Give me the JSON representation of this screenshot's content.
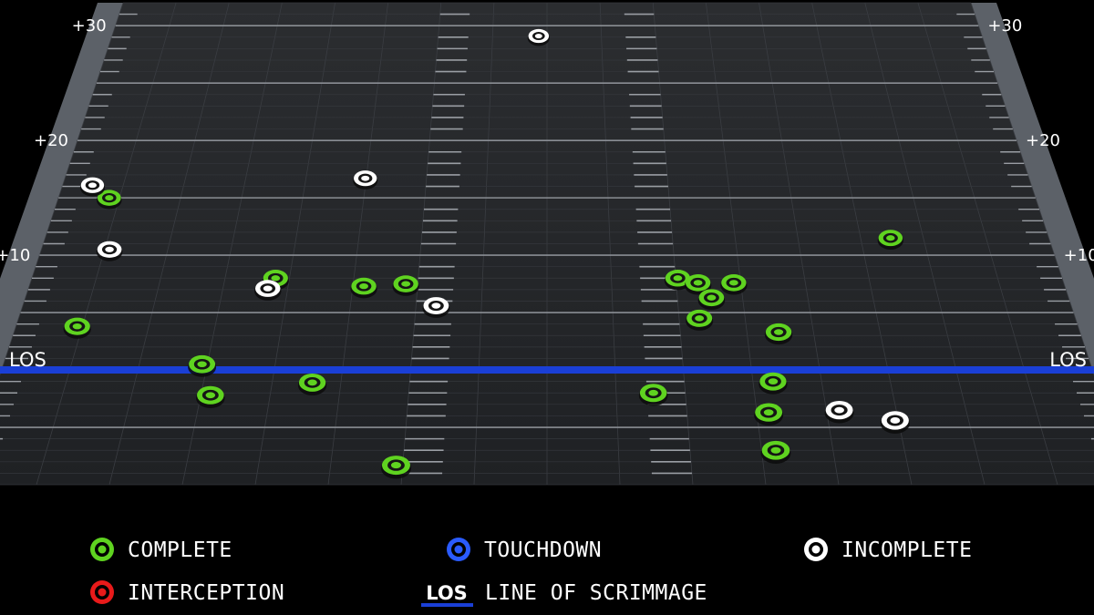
{
  "chart_data": {
    "type": "scatter",
    "title": "",
    "x_axis": {
      "label": "",
      "range": [
        -26,
        26
      ],
      "unit": "yards from center"
    },
    "y_axis": {
      "label": "",
      "range": [
        -10,
        32
      ],
      "unit": "yards from line of scrimmage",
      "tick_labels": [
        "+10",
        "+20",
        "+30"
      ],
      "los_label": "LOS"
    },
    "grid": true,
    "series": [
      {
        "name": "COMPLETE",
        "result": "complete",
        "color": "#5fd320",
        "points": [
          {
            "x": -23.3,
            "y": 15.0
          },
          {
            "x": -13.7,
            "y": 8.0
          },
          {
            "x": -9.2,
            "y": 7.3
          },
          {
            "x": -7.1,
            "y": 7.5
          },
          {
            "x": -23.0,
            "y": 3.8
          },
          {
            "x": -16.5,
            "y": 0.5
          },
          {
            "x": -15.8,
            "y": -2.2
          },
          {
            "x": -11.1,
            "y": -1.1
          },
          {
            "x": -6.8,
            "y": -8.3
          },
          {
            "x": 6.6,
            "y": 8.0
          },
          {
            "x": 7.6,
            "y": 7.6
          },
          {
            "x": 9.4,
            "y": 7.6
          },
          {
            "x": 8.2,
            "y": 6.3
          },
          {
            "x": 7.5,
            "y": 4.5
          },
          {
            "x": 11.3,
            "y": 3.3
          },
          {
            "x": 17.8,
            "y": 11.5
          },
          {
            "x": 5.0,
            "y": -2.0
          },
          {
            "x": 10.7,
            "y": -1.0
          },
          {
            "x": 10.3,
            "y": -3.7
          },
          {
            "x": 10.4,
            "y": -7.0
          }
        ]
      },
      {
        "name": "TOUCHDOWN",
        "result": "touchdown",
        "color": "#2a5bff",
        "points": []
      },
      {
        "name": "INCOMPLETE",
        "result": "incomplete",
        "color": "#ffffff",
        "points": [
          {
            "x": -24.4,
            "y": 16.1
          },
          {
            "x": -9.8,
            "y": 16.7
          },
          {
            "x": -0.5,
            "y": 29.1
          },
          {
            "x": -22.5,
            "y": 10.5
          },
          {
            "x": -14.0,
            "y": 7.1
          },
          {
            "x": -5.5,
            "y": 5.6
          },
          {
            "x": 13.6,
            "y": -3.5
          },
          {
            "x": 16.1,
            "y": -4.4
          }
        ]
      },
      {
        "name": "INTERCEPTION",
        "result": "interception",
        "color": "#e81a1a",
        "points": []
      }
    ],
    "legend": {
      "placement": "bottom",
      "items": [
        {
          "label": "COMPLETE",
          "color": "#5fd320"
        },
        {
          "label": "TOUCHDOWN",
          "color": "#2a5bff"
        },
        {
          "label": "INCOMPLETE",
          "color": "#ffffff"
        },
        {
          "label": "INTERCEPTION",
          "color": "#e81a1a"
        },
        {
          "label": "LINE OF SCRIMMAGE",
          "badge": "LOS",
          "color": "#1a3fd6"
        }
      ]
    }
  }
}
